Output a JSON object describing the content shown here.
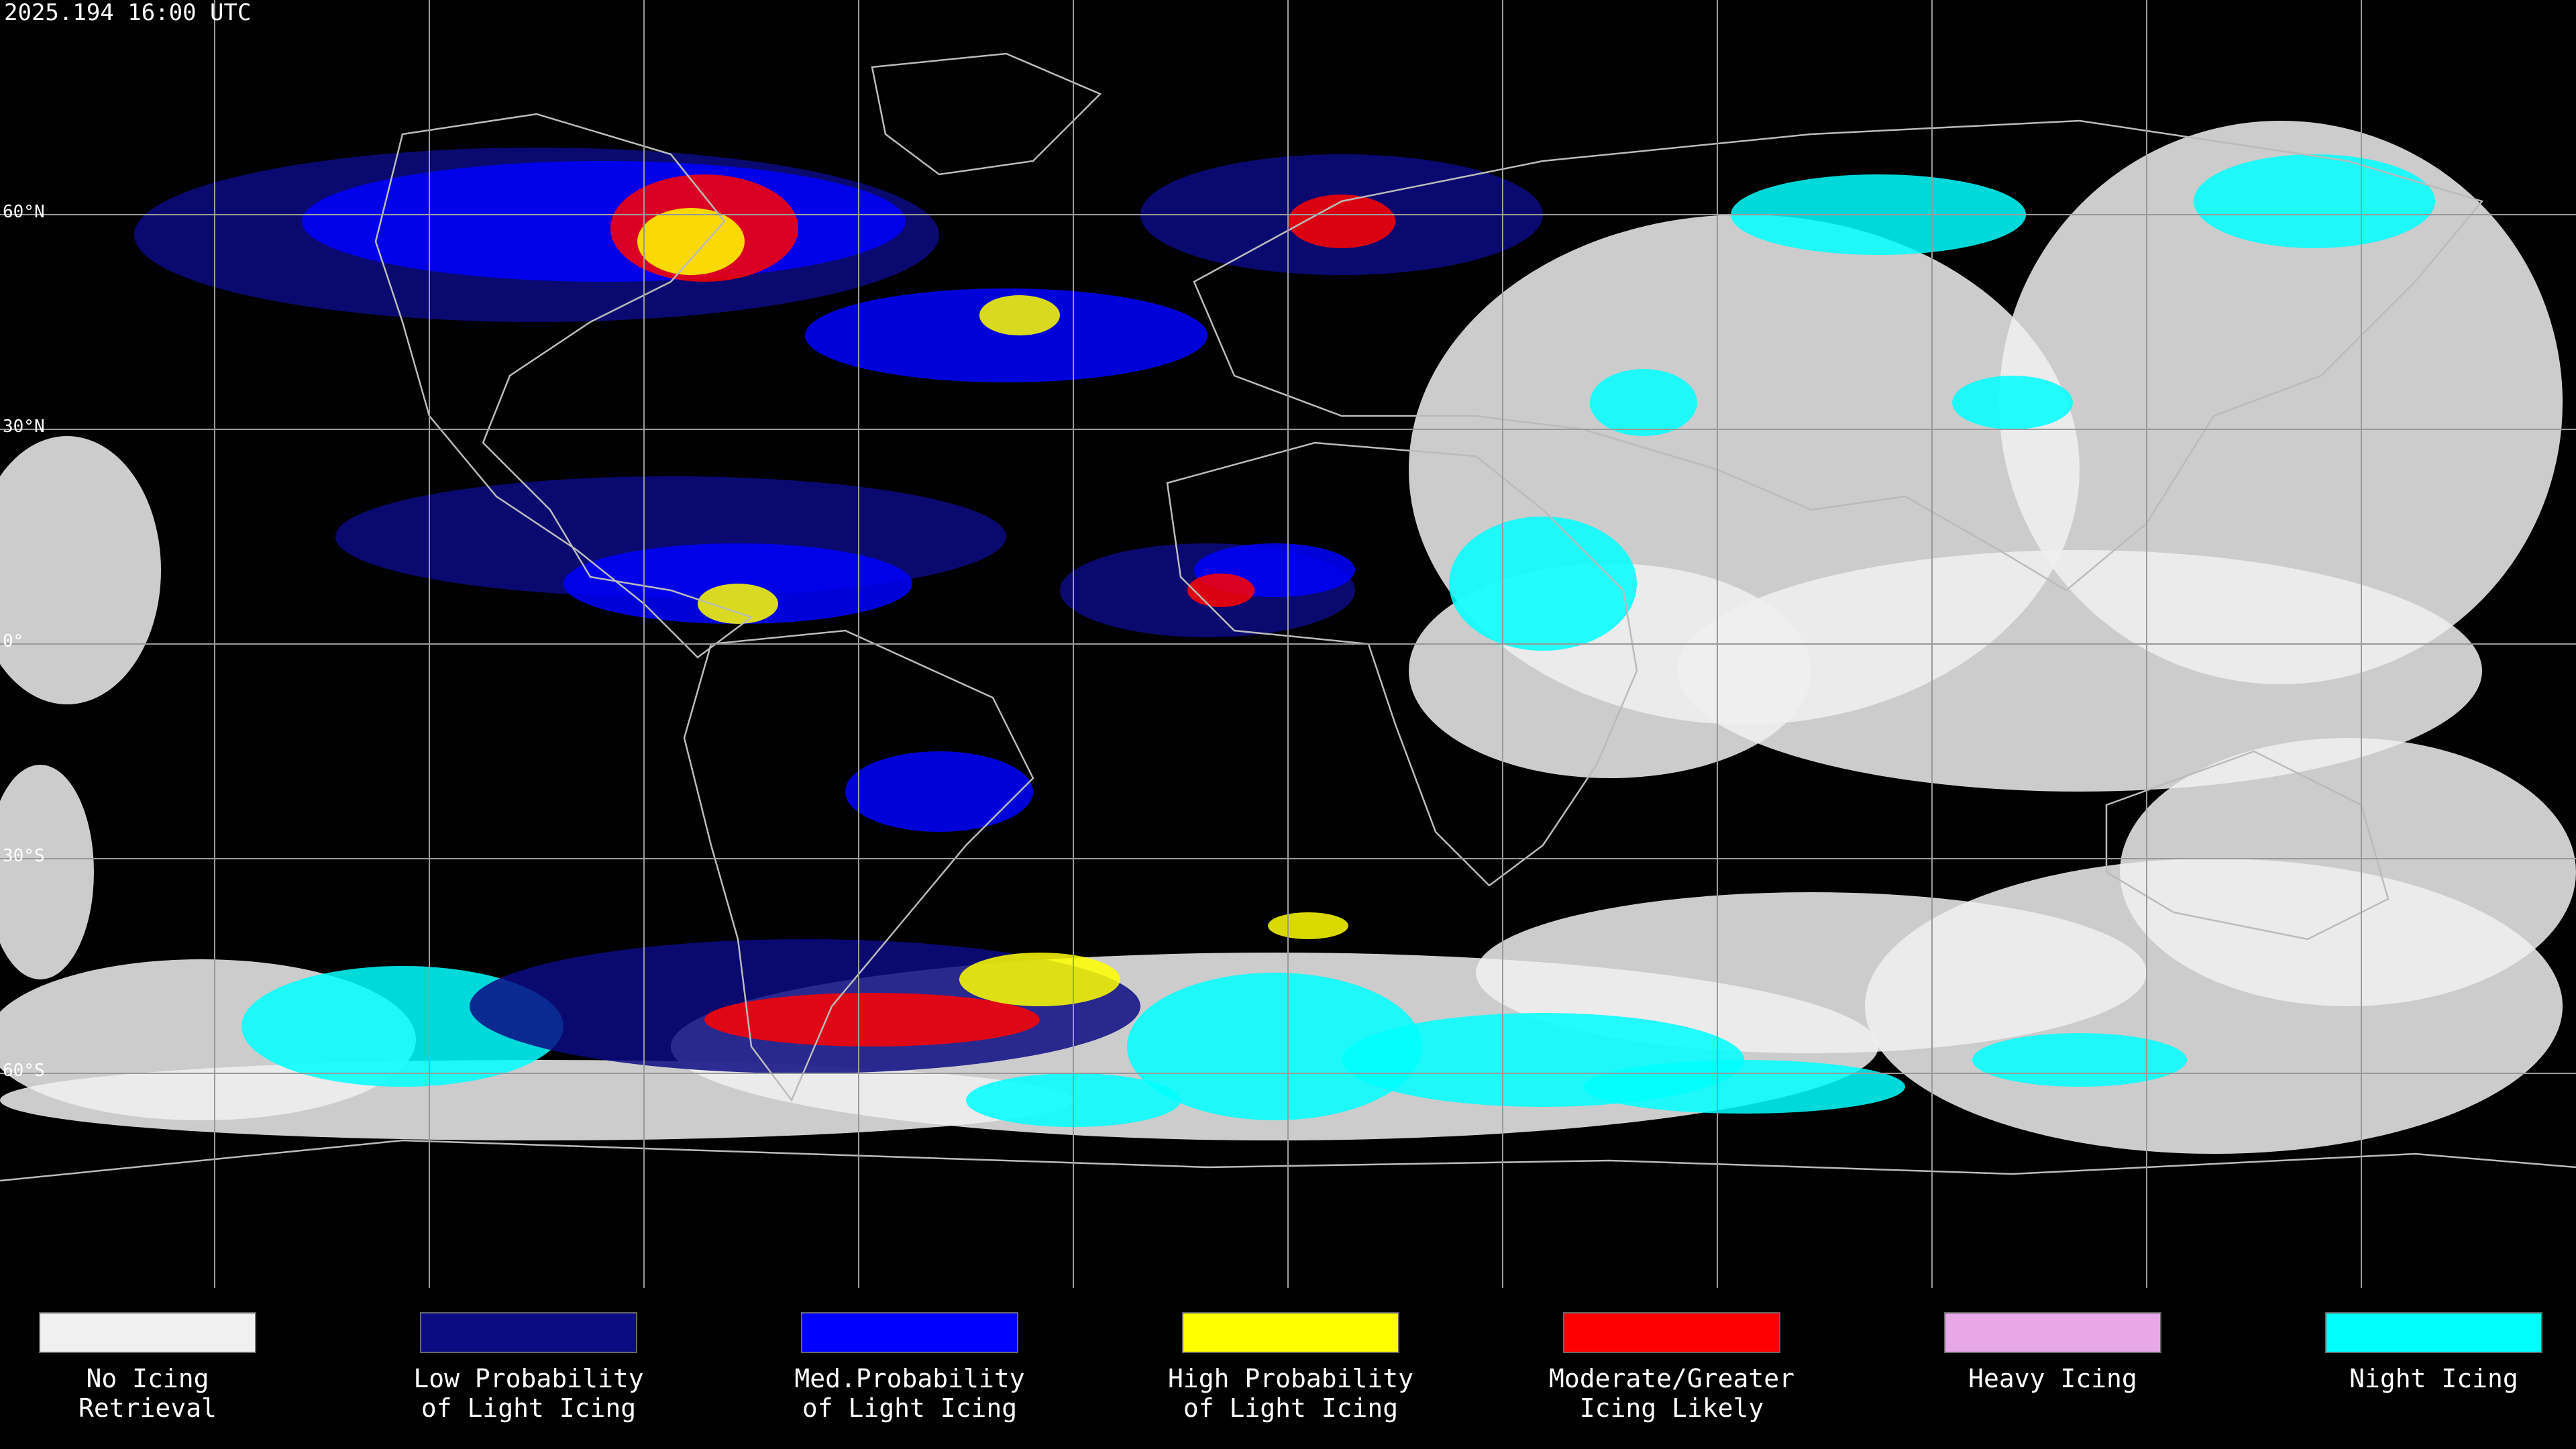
{
  "header": {
    "timestamp": "2025.194 16:00 UTC"
  },
  "map": {
    "latitude_lines": [
      {
        "value": 60,
        "label": "60°N"
      },
      {
        "value": 30,
        "label": "30°N"
      },
      {
        "value": 0,
        "label": "0°"
      },
      {
        "value": -30,
        "label": "30°S"
      },
      {
        "value": -60,
        "label": "60°S"
      }
    ]
  },
  "legend": [
    {
      "color": "#f0f0f0",
      "lines": [
        "No Icing",
        "Retrieval"
      ]
    },
    {
      "color": "#0b0b82",
      "lines": [
        "Low Probability",
        "of Light Icing"
      ]
    },
    {
      "color": "#0000ff",
      "lines": [
        "Med.Probability",
        "of Light Icing"
      ]
    },
    {
      "color": "#ffff00",
      "lines": [
        "High Probability",
        "of Light Icing"
      ]
    },
    {
      "color": "#ff0000",
      "lines": [
        "Moderate/Greater",
        "Icing Likely"
      ]
    },
    {
      "color": "#e8a8e8",
      "lines": [
        "Heavy Icing"
      ]
    },
    {
      "color": "#00ffff",
      "lines": [
        "Night Icing"
      ]
    }
  ]
}
